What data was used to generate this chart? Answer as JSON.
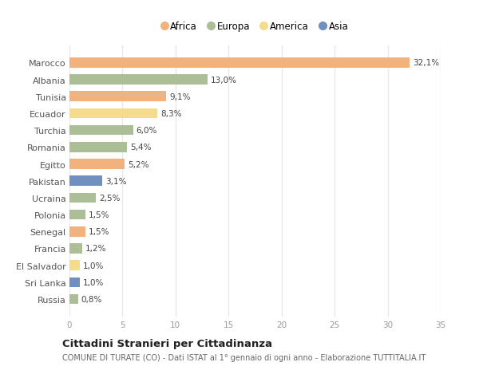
{
  "countries": [
    "Marocco",
    "Albania",
    "Tunisia",
    "Ecuador",
    "Turchia",
    "Romania",
    "Egitto",
    "Pakistan",
    "Ucraina",
    "Polonia",
    "Senegal",
    "Francia",
    "El Salvador",
    "Sri Lanka",
    "Russia"
  ],
  "values": [
    32.1,
    13.0,
    9.1,
    8.3,
    6.0,
    5.4,
    5.2,
    3.1,
    2.5,
    1.5,
    1.5,
    1.2,
    1.0,
    1.0,
    0.8
  ],
  "labels": [
    "32,1%",
    "13,0%",
    "9,1%",
    "8,3%",
    "6,0%",
    "5,4%",
    "5,2%",
    "3,1%",
    "2,5%",
    "1,5%",
    "1,5%",
    "1,2%",
    "1,0%",
    "1,0%",
    "0,8%"
  ],
  "continents": [
    "Africa",
    "Europa",
    "Africa",
    "America",
    "Europa",
    "Europa",
    "Africa",
    "Asia",
    "Europa",
    "Europa",
    "Africa",
    "Europa",
    "America",
    "Asia",
    "Europa"
  ],
  "colors": {
    "Africa": "#F2B27E",
    "Europa": "#ABBE96",
    "America": "#F5DC8C",
    "Asia": "#7090C0"
  },
  "legend_order": [
    "Africa",
    "Europa",
    "America",
    "Asia"
  ],
  "background_color": "#FFFFFF",
  "plot_bg_color": "#FFFFFF",
  "grid_color": "#E8E8E8",
  "title_main": "Cittadini Stranieri per Cittadinanza",
  "title_sub": "COMUNE DI TURATE (CO) - Dati ISTAT al 1° gennaio di ogni anno - Elaborazione TUTTITALIA.IT",
  "xlim": [
    0,
    35
  ],
  "xticks": [
    0,
    5,
    10,
    15,
    20,
    25,
    30,
    35
  ]
}
